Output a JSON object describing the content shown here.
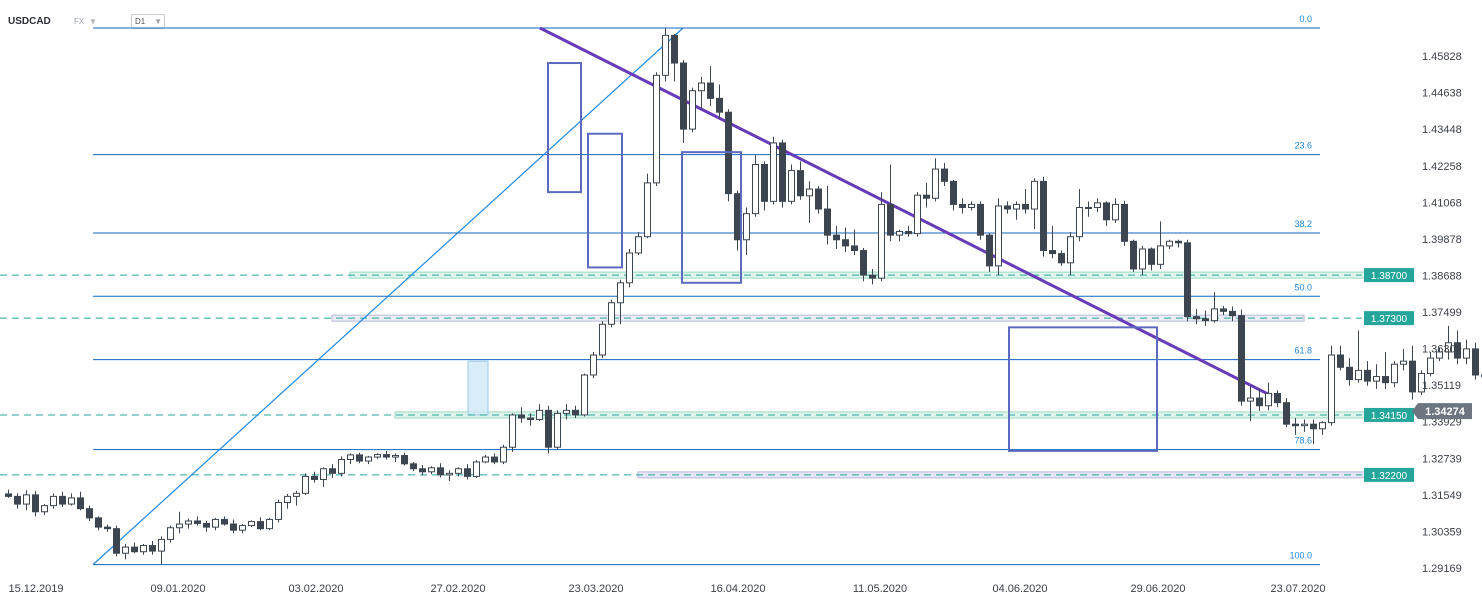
{
  "header": {
    "symbol": "USDCAD",
    "market": "FX",
    "timeframe": "D1"
  },
  "chart_data": {
    "type": "candlestick",
    "y_ticks": [
      "1.45828",
      "1.44638",
      "1.43448",
      "1.42258",
      "1.41068",
      "1.39878",
      "1.38688",
      "1.37499",
      "1.36309",
      "1.35119",
      "1.33929",
      "1.32739",
      "1.31549",
      "1.30359",
      "1.29169"
    ],
    "x_ticks": [
      "15.12.2019",
      "09.01.2020",
      "03.02.2020",
      "27.02.2020",
      "23.03.2020",
      "16.04.2020",
      "11.05.2020",
      "04.06.2020",
      "29.06.2020",
      "23.07.2020"
    ],
    "ylim": [
      1.2917,
      1.4674
    ],
    "current_price": {
      "label": "1.34274",
      "value": 1.34274
    },
    "fibonacci": [
      {
        "label": "0.0",
        "value": 1.4674
      },
      {
        "label": "23.6",
        "value": 1.4262
      },
      {
        "label": "38.2",
        "value": 1.4007
      },
      {
        "label": "50.0",
        "value": 1.3801
      },
      {
        "label": "61.8",
        "value": 1.3595
      },
      {
        "label": "78.6",
        "value": 1.3302
      },
      {
        "label": "100.0",
        "value": 1.2928
      }
    ],
    "key_levels": [
      {
        "label": "1.38700",
        "value": 1.387
      },
      {
        "label": "1.37300",
        "value": 1.373
      },
      {
        "label": "1.34150",
        "value": 1.3415
      },
      {
        "label": "1.32200",
        "value": 1.322
      }
    ],
    "trendlines": [
      {
        "kind": "uptrend",
        "from": {
          "bar": 0,
          "price": 1.2928
        },
        "to": {
          "bar": 60,
          "price": 1.4674
        }
      },
      {
        "kind": "downtrend",
        "from": {
          "bar": 56,
          "price": 1.4674
        },
        "to": {
          "bar": 139,
          "price": 1.3505
        }
      }
    ],
    "candles": [
      [
        1.3158,
        1.3172,
        1.3145,
        1.315
      ],
      [
        1.315,
        1.316,
        1.311,
        1.3125
      ],
      [
        1.3125,
        1.317,
        1.3105,
        1.3155
      ],
      [
        1.3155,
        1.3168,
        1.3085,
        1.31
      ],
      [
        1.31,
        1.3125,
        1.309,
        1.312
      ],
      [
        1.312,
        1.316,
        1.311,
        1.315
      ],
      [
        1.315,
        1.3165,
        1.3115,
        1.3125
      ],
      [
        1.3125,
        1.316,
        1.312,
        1.3145
      ],
      [
        1.3145,
        1.3165,
        1.3105,
        1.311
      ],
      [
        1.311,
        1.312,
        1.307,
        1.308
      ],
      [
        1.308,
        1.3085,
        1.304,
        1.305
      ],
      [
        1.305,
        1.3058,
        1.3035,
        1.3045
      ],
      [
        1.3045,
        1.3055,
        1.2955,
        1.2965
      ],
      [
        1.2965,
        1.2995,
        1.2945,
        1.2985
      ],
      [
        1.2985,
        1.3,
        1.2965,
        1.297
      ],
      [
        1.297,
        1.2995,
        1.296,
        1.299
      ],
      [
        1.299,
        1.3005,
        1.296,
        1.2972
      ],
      [
        1.2972,
        1.302,
        1.293,
        1.301
      ],
      [
        1.301,
        1.3055,
        1.3,
        1.3048
      ],
      [
        1.3048,
        1.31,
        1.303,
        1.306
      ],
      [
        1.306,
        1.3078,
        1.3045,
        1.307
      ],
      [
        1.307,
        1.3085,
        1.3055,
        1.3062
      ],
      [
        1.3062,
        1.307,
        1.3035,
        1.305
      ],
      [
        1.305,
        1.308,
        1.304,
        1.3075
      ],
      [
        1.3075,
        1.3085,
        1.3055,
        1.306
      ],
      [
        1.306,
        1.3075,
        1.303,
        1.304
      ],
      [
        1.304,
        1.306,
        1.303,
        1.3055
      ],
      [
        1.3055,
        1.3072,
        1.305,
        1.3068
      ],
      [
        1.3068,
        1.3082,
        1.304,
        1.3045
      ],
      [
        1.3045,
        1.308,
        1.304,
        1.3075
      ],
      [
        1.3075,
        1.314,
        1.3065,
        1.313
      ],
      [
        1.313,
        1.3158,
        1.311,
        1.315
      ],
      [
        1.315,
        1.3168,
        1.312,
        1.316
      ],
      [
        1.316,
        1.3225,
        1.3155,
        1.3215
      ],
      [
        1.3215,
        1.323,
        1.3195,
        1.3205
      ],
      [
        1.3205,
        1.3245,
        1.318,
        1.324
      ],
      [
        1.324,
        1.3255,
        1.321,
        1.3225
      ],
      [
        1.3225,
        1.328,
        1.3215,
        1.327
      ],
      [
        1.327,
        1.329,
        1.3255,
        1.3285
      ],
      [
        1.3285,
        1.3292,
        1.3258,
        1.3265
      ],
      [
        1.3265,
        1.3282,
        1.3255,
        1.3278
      ],
      [
        1.3278,
        1.329,
        1.3272,
        1.3286
      ],
      [
        1.3286,
        1.3298,
        1.327,
        1.3278
      ],
      [
        1.3278,
        1.329,
        1.3262,
        1.3283
      ],
      [
        1.3283,
        1.3292,
        1.325,
        1.3256
      ],
      [
        1.3256,
        1.3262,
        1.3232,
        1.324
      ],
      [
        1.324,
        1.3252,
        1.3218,
        1.323
      ],
      [
        1.323,
        1.3248,
        1.3222,
        1.3243
      ],
      [
        1.3243,
        1.3258,
        1.3212,
        1.322
      ],
      [
        1.322,
        1.3235,
        1.32,
        1.3225
      ],
      [
        1.3225,
        1.3245,
        1.3215,
        1.324
      ],
      [
        1.324,
        1.3255,
        1.3205,
        1.3215
      ],
      [
        1.3215,
        1.3268,
        1.321,
        1.3262
      ],
      [
        1.3262,
        1.3285,
        1.3258,
        1.3278
      ],
      [
        1.3278,
        1.329,
        1.3255,
        1.3262
      ],
      [
        1.3262,
        1.3318,
        1.3255,
        1.331
      ],
      [
        1.331,
        1.342,
        1.3295,
        1.3415
      ],
      [
        1.3415,
        1.344,
        1.339,
        1.3405
      ],
      [
        1.3405,
        1.342,
        1.338,
        1.34
      ],
      [
        1.34,
        1.345,
        1.3395,
        1.343
      ],
      [
        1.343,
        1.3445,
        1.329,
        1.331
      ],
      [
        1.331,
        1.343,
        1.33,
        1.342
      ],
      [
        1.342,
        1.345,
        1.34,
        1.343
      ],
      [
        1.343,
        1.3445,
        1.3405,
        1.3415
      ],
      [
        1.3415,
        1.355,
        1.341,
        1.3545
      ],
      [
        1.3545,
        1.362,
        1.3535,
        1.361
      ],
      [
        1.361,
        1.372,
        1.36,
        1.371
      ],
      [
        1.371,
        1.379,
        1.37,
        1.378
      ],
      [
        1.378,
        1.3855,
        1.371,
        1.3845
      ],
      [
        1.3845,
        1.3955,
        1.383,
        1.3942
      ],
      [
        1.3942,
        1.401,
        1.3935,
        1.3995
      ],
      [
        1.3995,
        1.42,
        1.399,
        1.417
      ],
      [
        1.417,
        1.453,
        1.416,
        1.452
      ],
      [
        1.452,
        1.4674,
        1.45,
        1.465
      ],
      [
        1.465,
        1.4655,
        1.45,
        1.456
      ],
      [
        1.456,
        1.457,
        1.43,
        1.4345
      ],
      [
        1.4345,
        1.448,
        1.4335,
        1.447
      ],
      [
        1.447,
        1.4515,
        1.441,
        1.4495
      ],
      [
        1.4495,
        1.455,
        1.442,
        1.4445
      ],
      [
        1.4445,
        1.449,
        1.438,
        1.44
      ],
      [
        1.44,
        1.441,
        1.411,
        1.4135
      ],
      [
        1.4135,
        1.4145,
        1.395,
        1.3985
      ],
      [
        1.3985,
        1.409,
        1.3935,
        1.407
      ],
      [
        1.407,
        1.426,
        1.406,
        1.423
      ],
      [
        1.423,
        1.424,
        1.408,
        1.411
      ],
      [
        1.411,
        1.432,
        1.41,
        1.43
      ],
      [
        1.43,
        1.431,
        1.409,
        1.411
      ],
      [
        1.411,
        1.423,
        1.41,
        1.421
      ],
      [
        1.421,
        1.424,
        1.4115,
        1.4128
      ],
      [
        1.4128,
        1.4175,
        1.404,
        1.415
      ],
      [
        1.415,
        1.416,
        1.407,
        1.4085
      ],
      [
        1.4085,
        1.416,
        1.397,
        1.4
      ],
      [
        1.4,
        1.403,
        1.3955,
        1.3985
      ],
      [
        1.3985,
        1.4025,
        1.3945,
        1.3965
      ],
      [
        1.3965,
        1.4018,
        1.3935,
        1.395
      ],
      [
        1.395,
        1.3958,
        1.385,
        1.387
      ],
      [
        1.387,
        1.389,
        1.384,
        1.386
      ],
      [
        1.386,
        1.414,
        1.385,
        1.41
      ],
      [
        1.41,
        1.423,
        1.398,
        1.4
      ],
      [
        1.4,
        1.4018,
        1.398,
        1.4012
      ],
      [
        1.4012,
        1.403,
        1.3995,
        1.4005
      ],
      [
        1.4005,
        1.414,
        1.3995,
        1.413
      ],
      [
        1.413,
        1.417,
        1.409,
        1.412
      ],
      [
        1.412,
        1.425,
        1.411,
        1.4215
      ],
      [
        1.4215,
        1.4235,
        1.416,
        1.4175
      ],
      [
        1.4175,
        1.418,
        1.408,
        1.41
      ],
      [
        1.41,
        1.412,
        1.407,
        1.409
      ],
      [
        1.409,
        1.411,
        1.408,
        1.41
      ],
      [
        1.41,
        1.411,
        1.3985,
        1.4
      ],
      [
        1.4,
        1.4005,
        1.388,
        1.39
      ],
      [
        1.39,
        1.412,
        1.387,
        1.4095
      ],
      [
        1.4095,
        1.411,
        1.407,
        1.4085
      ],
      [
        1.4085,
        1.411,
        1.405,
        1.41
      ],
      [
        1.41,
        1.415,
        1.407,
        1.4085
      ],
      [
        1.4085,
        1.4185,
        1.402,
        1.4175
      ],
      [
        1.4175,
        1.419,
        1.393,
        1.395
      ],
      [
        1.395,
        1.403,
        1.3925,
        1.394
      ],
      [
        1.394,
        1.395,
        1.39,
        1.391
      ],
      [
        1.391,
        1.401,
        1.387,
        1.3995
      ],
      [
        1.3995,
        1.415,
        1.398,
        1.409
      ],
      [
        1.409,
        1.411,
        1.406,
        1.409
      ],
      [
        1.409,
        1.412,
        1.4075,
        1.4105
      ],
      [
        1.4105,
        1.411,
        1.403,
        1.405
      ],
      [
        1.405,
        1.412,
        1.404,
        1.41
      ],
      [
        1.41,
        1.4112,
        1.3965,
        1.398
      ],
      [
        1.398,
        1.3985,
        1.388,
        1.389
      ],
      [
        1.389,
        1.3965,
        1.387,
        1.3955
      ],
      [
        1.3955,
        1.396,
        1.3885,
        1.3905
      ],
      [
        1.3905,
        1.4045,
        1.389,
        1.3965
      ],
      [
        1.3965,
        1.3985,
        1.3955,
        1.398
      ],
      [
        1.398,
        1.3985,
        1.396,
        1.3975
      ],
      [
        1.3975,
        1.3985,
        1.372,
        1.3735
      ],
      [
        1.3735,
        1.376,
        1.371,
        1.3728
      ],
      [
        1.3728,
        1.3755,
        1.3705,
        1.3722
      ],
      [
        1.3722,
        1.3815,
        1.3715,
        1.376
      ],
      [
        1.376,
        1.377,
        1.374,
        1.3752
      ],
      [
        1.3752,
        1.3768,
        1.372,
        1.3738
      ],
      [
        1.3738,
        1.3758,
        1.3445,
        1.346
      ],
      [
        1.346,
        1.351,
        1.3395,
        1.347
      ],
      [
        1.347,
        1.35,
        1.3428,
        1.3445
      ],
      [
        1.3445,
        1.352,
        1.343,
        1.3485
      ],
      [
        1.3485,
        1.3495,
        1.344,
        1.3455
      ],
      [
        1.3455,
        1.347,
        1.3375,
        1.3385
      ],
      [
        1.3385,
        1.3405,
        1.335,
        1.338
      ],
      [
        1.338,
        1.34,
        1.336,
        1.3385
      ],
      [
        1.3385,
        1.34,
        1.332,
        1.337
      ],
      [
        1.337,
        1.3395,
        1.335,
        1.339
      ],
      [
        1.339,
        1.364,
        1.338,
        1.361
      ],
      [
        1.361,
        1.364,
        1.356,
        1.357
      ],
      [
        1.357,
        1.36,
        1.351,
        1.353
      ],
      [
        1.353,
        1.369,
        1.352,
        1.356
      ],
      [
        1.356,
        1.359,
        1.351,
        1.3525
      ],
      [
        1.3525,
        1.358,
        1.35,
        1.354
      ],
      [
        1.354,
        1.362,
        1.35,
        1.352
      ],
      [
        1.352,
        1.359,
        1.3505,
        1.358
      ],
      [
        1.358,
        1.363,
        1.356,
        1.359
      ],
      [
        1.359,
        1.364,
        1.3465,
        1.349
      ],
      [
        1.349,
        1.356,
        1.348,
        1.355
      ],
      [
        1.355,
        1.362,
        1.354,
        1.36
      ],
      [
        1.36,
        1.3635,
        1.359,
        1.362
      ],
      [
        1.362,
        1.3705,
        1.3595,
        1.365
      ],
      [
        1.365,
        1.369,
        1.358,
        1.36
      ],
      [
        1.36,
        1.366,
        1.358,
        1.363
      ],
      [
        1.363,
        1.365,
        1.353,
        1.3545
      ],
      [
        1.3545,
        1.357,
        1.3525,
        1.354
      ],
      [
        1.354,
        1.356,
        1.351,
        1.353
      ],
      [
        1.353,
        1.3545,
        1.351,
        1.3525
      ],
      [
        1.3525,
        1.3535,
        1.35,
        1.352
      ],
      [
        1.352,
        1.361,
        1.347,
        1.36
      ],
      [
        1.36,
        1.3625,
        1.3475,
        1.349
      ],
      [
        1.349,
        1.36,
        1.348,
        1.3585
      ],
      [
        1.3585,
        1.363,
        1.357,
        1.36
      ],
      [
        1.36,
        1.361,
        1.356,
        1.359
      ],
      [
        1.359,
        1.3605,
        1.354,
        1.358
      ],
      [
        1.358,
        1.365,
        1.3545,
        1.36
      ],
      [
        1.36,
        1.3605,
        1.348,
        1.3495
      ],
      [
        1.3495,
        1.358,
        1.348,
        1.357
      ],
      [
        1.357,
        1.3582,
        1.356,
        1.3578
      ],
      [
        1.3578,
        1.359,
        1.348,
        1.3505
      ],
      [
        1.3505,
        1.3515,
        1.343,
        1.344
      ],
      [
        1.344,
        1.345,
        1.341,
        1.3427
      ]
    ]
  }
}
